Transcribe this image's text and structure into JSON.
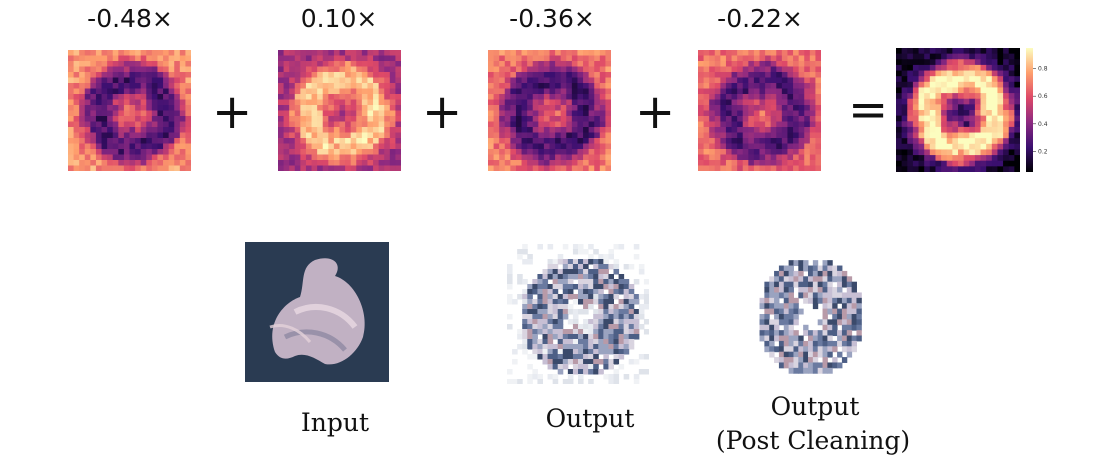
{
  "coefficients": [
    "-0.48×",
    "0.10×",
    "-0.36×",
    "-0.22×"
  ],
  "operators": {
    "plus": "+",
    "equals": "="
  },
  "colorbar": {
    "ticks": [
      "0.2",
      "0.4",
      "0.6",
      "0.8"
    ],
    "colormap": "inferno"
  },
  "captions": {
    "input": "Input",
    "output": "Output",
    "cleaned_line1": "Output",
    "cleaned_line2": "(Post Cleaning)"
  }
}
